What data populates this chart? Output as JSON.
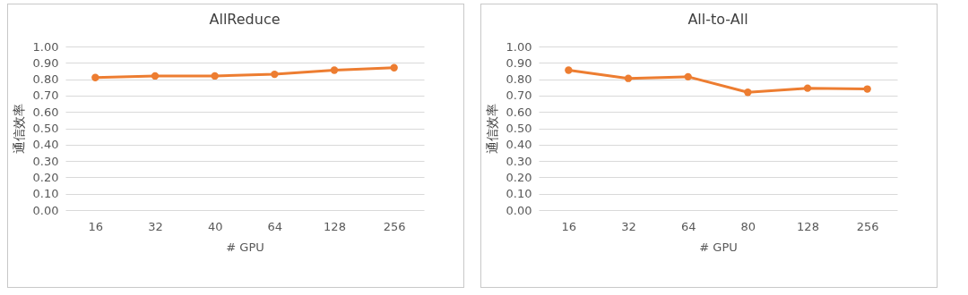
{
  "chart_data": [
    {
      "type": "line",
      "title": "AllReduce",
      "xlabel": "# GPU",
      "ylabel": "通信效率",
      "categories": [
        "16",
        "32",
        "40",
        "64",
        "128",
        "256"
      ],
      "series": [
        {
          "color": "#ed7d31",
          "values": [
            0.81,
            0.82,
            0.82,
            0.83,
            0.855,
            0.87
          ]
        }
      ],
      "ylim": [
        0,
        1
      ],
      "yticks": [
        {
          "value": 0,
          "label": "0.00"
        },
        {
          "value": 0.1,
          "label": "0.10"
        },
        {
          "value": 0.2,
          "label": "0.20"
        },
        {
          "value": 0.3,
          "label": "0.30"
        },
        {
          "value": 0.4,
          "label": "0.40"
        },
        {
          "value": 0.5,
          "label": "0.50"
        },
        {
          "value": 0.6,
          "label": "0.60"
        },
        {
          "value": 0.7,
          "label": "0.70"
        },
        {
          "value": 0.8,
          "label": "0.80"
        },
        {
          "value": 0.9,
          "label": "0.90"
        },
        {
          "value": 1,
          "label": "1.00"
        }
      ],
      "grid": "y",
      "marker": "circle",
      "line_style": "solid"
    },
    {
      "type": "line",
      "title": "All-to-All",
      "xlabel": "# GPU",
      "ylabel": "通信效率",
      "categories": [
        "16",
        "32",
        "64",
        "80",
        "128",
        "256"
      ],
      "series": [
        {
          "color": "#ed7d31",
          "values": [
            0.855,
            0.805,
            0.815,
            0.72,
            0.745,
            0.74
          ]
        }
      ],
      "ylim": [
        0,
        1
      ],
      "yticks": [
        {
          "value": 0,
          "label": "0.00"
        },
        {
          "value": 0.1,
          "label": "0.10"
        },
        {
          "value": 0.2,
          "label": "0.20"
        },
        {
          "value": 0.3,
          "label": "0.30"
        },
        {
          "value": 0.4,
          "label": "0.40"
        },
        {
          "value": 0.5,
          "label": "0.50"
        },
        {
          "value": 0.6,
          "label": "0.60"
        },
        {
          "value": 0.7,
          "label": "0.70"
        },
        {
          "value": 0.8,
          "label": "0.80"
        },
        {
          "value": 0.9,
          "label": "0.90"
        },
        {
          "value": 1,
          "label": "1.00"
        }
      ],
      "grid": "y",
      "marker": "circle",
      "line_style": "solid"
    }
  ]
}
